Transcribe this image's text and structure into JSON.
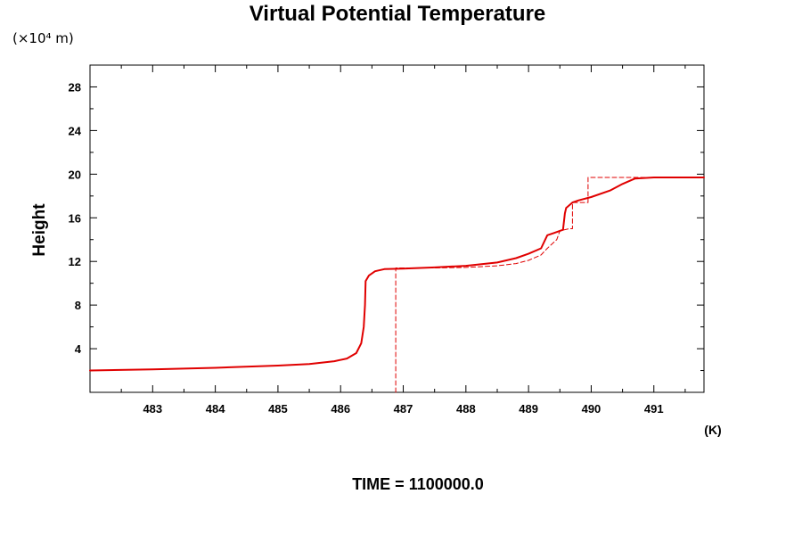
{
  "chart_data": {
    "type": "line",
    "title": "Virtual Potential Temperature",
    "y_unit": "(×10⁴ m)",
    "ylabel": "Height",
    "xlabel": "(K)",
    "footer": "TIME = 1100000.0",
    "xlim": [
      482.0,
      491.8
    ],
    "ylim": [
      0,
      30
    ],
    "x_ticks": [
      483,
      484,
      485,
      486,
      487,
      488,
      489,
      490,
      491
    ],
    "x_tick_labels": [
      "483",
      "484",
      "485",
      "486",
      "487",
      "488",
      "489",
      "490",
      "491"
    ],
    "y_ticks": [
      4,
      8,
      12,
      16,
      20,
      24,
      28
    ],
    "y_tick_labels": [
      "4",
      "8",
      "12",
      "16",
      "20",
      "24",
      "28"
    ],
    "grid": false,
    "series": [
      {
        "style": "solid",
        "color": "#e00000",
        "x": [
          482.0,
          483.0,
          484.0,
          485.0,
          485.5,
          485.9,
          486.1,
          486.25,
          486.33,
          486.37,
          486.39,
          486.4,
          486.45,
          486.55,
          486.7,
          487.0,
          487.5,
          488.0,
          488.5,
          488.8,
          489.0,
          489.2,
          489.3,
          489.4,
          489.55,
          489.58,
          489.6,
          489.7,
          489.8,
          490.0,
          490.3,
          490.5,
          490.7,
          491.0,
          491.5,
          491.8
        ],
        "y": [
          2.0,
          2.1,
          2.25,
          2.45,
          2.6,
          2.85,
          3.1,
          3.6,
          4.5,
          6.0,
          8.0,
          10.2,
          10.7,
          11.1,
          11.3,
          11.35,
          11.45,
          11.6,
          11.9,
          12.3,
          12.7,
          13.2,
          14.4,
          14.6,
          14.9,
          16.4,
          16.9,
          17.4,
          17.6,
          17.9,
          18.5,
          19.1,
          19.6,
          19.7,
          19.7,
          19.7
        ]
      },
      {
        "style": "dashed",
        "color": "#e00000",
        "x": [
          486.88,
          486.88,
          487.5,
          488.0,
          488.5,
          488.8,
          489.0,
          489.2,
          489.3,
          489.45,
          489.5,
          489.65,
          489.7,
          489.7,
          489.95,
          489.95,
          491.0,
          491.8
        ],
        "y": [
          0.0,
          11.4,
          11.4,
          11.45,
          11.6,
          11.8,
          12.1,
          12.6,
          13.2,
          14.0,
          14.8,
          15.0,
          15.0,
          17.4,
          17.4,
          19.7,
          19.7,
          19.7
        ]
      }
    ]
  }
}
